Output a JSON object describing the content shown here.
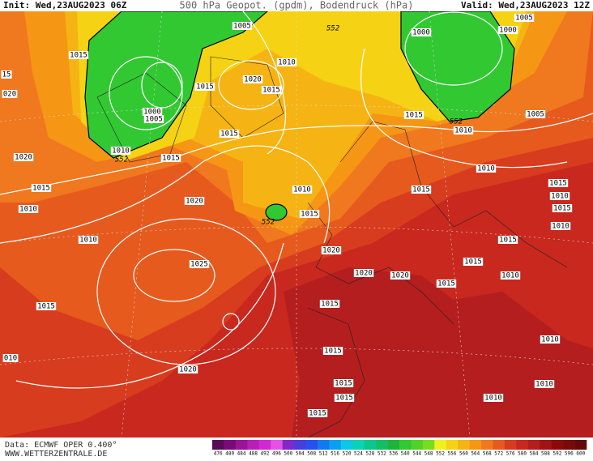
{
  "header": {
    "init": "Init: Wed,23AUG2023 06Z",
    "title": "500 hPa Geopot. (gpdm), Bodendruck (hPa)",
    "valid": "Valid: Wed,23AUG2023 12Z"
  },
  "map": {
    "isobar_labels": [
      "15",
      "020",
      "1015",
      "1005",
      "552",
      "1010",
      "1020",
      "1015",
      "1015",
      "1000",
      "1005",
      "1015",
      "1010",
      "552",
      "1015",
      "1020",
      "1015",
      "1010",
      "1020",
      "1010",
      "552",
      "1015",
      "1010",
      "1020",
      "1025",
      "1020",
      "1020",
      "1015",
      "1015",
      "1015",
      "1010",
      "1015",
      "1015",
      "1010",
      "1015",
      "1010",
      "1015",
      "1015",
      "1010",
      "1015",
      "552",
      "1010",
      "1005",
      "1005",
      "1000",
      "1000",
      "010",
      "1020",
      "1015",
      "1015",
      "1015",
      "1015",
      "1010",
      "1010",
      "1010"
    ]
  },
  "footer": {
    "data": "Data: ECMWF OPER 0.400°",
    "site": "WWW.WETTERZENTRALE.DE"
  },
  "colorbar": {
    "labels": [
      476,
      480,
      484,
      488,
      492,
      496,
      500,
      504,
      508,
      512,
      516,
      520,
      524,
      528,
      532,
      536,
      540,
      544,
      548,
      552,
      556,
      560,
      564,
      568,
      572,
      576,
      580,
      584,
      588,
      592,
      596,
      600
    ],
    "colors": [
      "#5a0a5a",
      "#7a0a7a",
      "#9a149a",
      "#b81eb8",
      "#d228d2",
      "#e650e6",
      "#8228c8",
      "#4b3cdc",
      "#2850f0",
      "#1478f0",
      "#0aa0f0",
      "#0ac8e6",
      "#0ad2b4",
      "#0ac88c",
      "#14be64",
      "#1eb43c",
      "#32c832",
      "#50d228",
      "#78dc1e",
      "#f0f01e",
      "#f5d214",
      "#f5b414",
      "#f59614",
      "#f0781e",
      "#e65a1e",
      "#d83c1e",
      "#c8281e",
      "#b41e1e",
      "#a01414",
      "#8c0a0a",
      "#780a0a",
      "#640a0a"
    ]
  }
}
